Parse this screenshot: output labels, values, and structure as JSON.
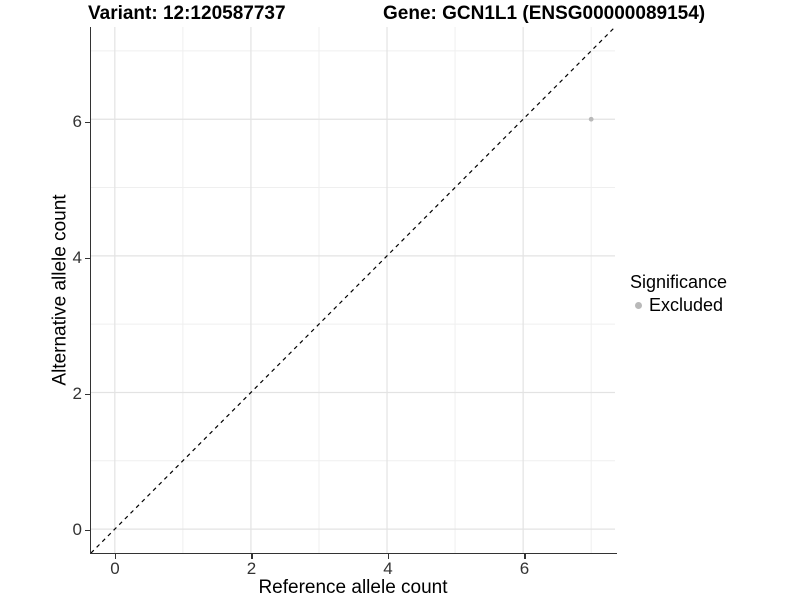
{
  "chart_data": {
    "type": "scatter",
    "titles": {
      "variant": "Variant: 12:120587737",
      "gene": "Gene: GCN1L1 (ENSG00000089154)"
    },
    "xlabel": "Reference allele count",
    "ylabel": "Alternative allele count",
    "xlim": [
      -0.35,
      7.35
    ],
    "ylim": [
      -0.35,
      7.35
    ],
    "x_major_ticks": [
      0,
      2,
      4,
      6
    ],
    "y_major_ticks": [
      0,
      2,
      4,
      6
    ],
    "x_minor_gridlines": [
      1,
      3,
      5,
      7
    ],
    "y_minor_gridlines": [
      1,
      3,
      5,
      7
    ],
    "grid": true,
    "identity_line": {
      "style": "dashed",
      "color": "#000000",
      "from": [
        -0.35,
        -0.35
      ],
      "to": [
        7.35,
        7.35
      ]
    },
    "series": [
      {
        "name": "Excluded",
        "color": "#b9b9b9",
        "points": [
          {
            "x": 7,
            "y": 6
          }
        ]
      }
    ],
    "legend": {
      "title": "Significance",
      "position": "right",
      "entries": [
        {
          "label": "Excluded",
          "color": "#b9b9b9"
        }
      ]
    },
    "colors": {
      "background": "#ffffff",
      "gridline_major": "#e3e3e3",
      "gridline_minor": "#efefef",
      "axis_line": "#333333",
      "tick_label": "#333333",
      "point": "#b9b9b9"
    }
  }
}
